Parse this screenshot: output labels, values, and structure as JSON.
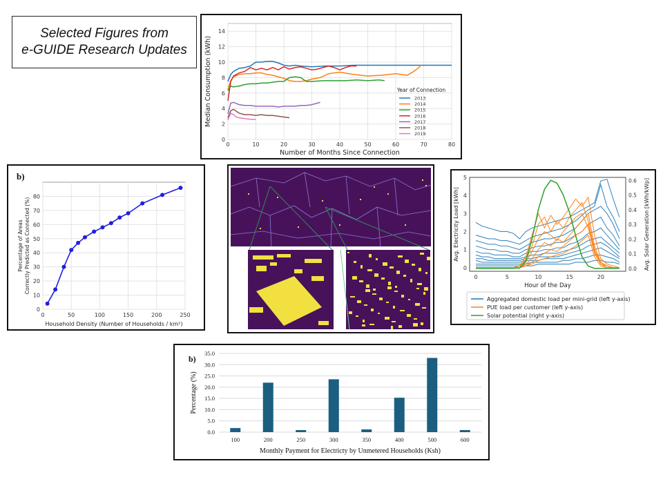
{
  "slide": {
    "title_line1": "Selected Figures from",
    "title_line2": "e-GUIDE Research Updates"
  },
  "chart_data": [
    {
      "type": "line",
      "id": "median-consumption",
      "xlabel": "Number of Months Since Connection",
      "ylabel": "Median Consumption (kWh)",
      "xlim": [
        0,
        80
      ],
      "ylim": [
        0,
        15
      ],
      "xticks": [
        0,
        10,
        20,
        30,
        40,
        50,
        60,
        70,
        80
      ],
      "yticks": [
        0,
        2,
        4,
        6,
        8,
        10,
        12,
        14
      ],
      "grid": true,
      "legend_title": "Year of Connection",
      "legend_position": "right",
      "series": [
        {
          "name": "2013",
          "color": "#1f77b4",
          "x": [
            0,
            1,
            2,
            4,
            6,
            8,
            10,
            12,
            14,
            16,
            18,
            20,
            22,
            24,
            26,
            30,
            35,
            40,
            45,
            50,
            55,
            60,
            65,
            70,
            75,
            80
          ],
          "y": [
            7.5,
            8.4,
            8.8,
            9.2,
            9.3,
            9.5,
            10.0,
            10.0,
            10.1,
            10.1,
            9.9,
            9.6,
            9.5,
            9.6,
            9.5,
            9.4,
            9.5,
            9.5,
            9.6,
            9.6,
            9.6,
            9.6,
            9.6,
            9.6,
            9.6,
            9.6
          ]
        },
        {
          "name": "2014",
          "color": "#ff7f0e",
          "x": [
            0,
            1,
            2,
            4,
            6,
            8,
            10,
            12,
            14,
            16,
            18,
            20,
            22,
            24,
            26,
            28,
            30,
            33,
            36,
            40,
            45,
            50,
            55,
            60,
            64,
            66,
            68,
            69
          ],
          "y": [
            6.5,
            7.6,
            8.1,
            8.4,
            8.5,
            8.5,
            8.6,
            8.6,
            8.4,
            8.3,
            8.1,
            7.9,
            7.6,
            7.5,
            7.5,
            7.6,
            7.8,
            8.0,
            8.5,
            8.7,
            8.4,
            8.2,
            8.3,
            8.5,
            8.3,
            8.7,
            9.2,
            9.6
          ]
        },
        {
          "name": "2015",
          "color": "#2ca02c",
          "x": [
            0,
            1,
            2,
            4,
            6,
            8,
            10,
            12,
            14,
            16,
            18,
            20,
            22,
            24,
            26,
            28,
            30,
            34,
            38,
            42,
            46,
            50,
            54,
            56
          ],
          "y": [
            6.3,
            6.9,
            6.8,
            6.9,
            7.1,
            7.2,
            7.2,
            7.3,
            7.3,
            7.4,
            7.5,
            7.5,
            8.0,
            8.1,
            8.0,
            7.5,
            7.5,
            7.6,
            7.6,
            7.6,
            7.7,
            7.6,
            7.7,
            7.6
          ]
        },
        {
          "name": "2016",
          "color": "#d62728",
          "x": [
            0,
            1,
            2,
            4,
            6,
            8,
            10,
            12,
            14,
            16,
            18,
            20,
            22,
            24,
            26,
            28,
            30,
            32,
            34,
            36,
            38,
            40,
            42,
            44,
            46
          ],
          "y": [
            5.0,
            7.5,
            8.2,
            8.6,
            8.8,
            9.3,
            9.0,
            9.2,
            9.0,
            9.3,
            9.0,
            9.4,
            9.1,
            9.3,
            9.4,
            9.2,
            9.0,
            9.1,
            9.3,
            9.5,
            9.3,
            9.0,
            9.3,
            9.5,
            9.5
          ]
        },
        {
          "name": "2017",
          "color": "#9467bd",
          "x": [
            0,
            1,
            2,
            4,
            6,
            8,
            10,
            12,
            14,
            16,
            18,
            20,
            22,
            24,
            26,
            28,
            30,
            32,
            33
          ],
          "y": [
            3.3,
            4.7,
            4.8,
            4.5,
            4.4,
            4.4,
            4.3,
            4.3,
            4.3,
            4.3,
            4.2,
            4.3,
            4.3,
            4.3,
            4.4,
            4.4,
            4.5,
            4.7,
            4.8
          ]
        },
        {
          "name": "2018",
          "color": "#8c564b",
          "x": [
            0,
            1,
            2,
            4,
            6,
            8,
            10,
            12,
            14,
            16,
            18,
            20,
            22
          ],
          "y": [
            2.8,
            3.7,
            3.9,
            3.4,
            3.2,
            3.2,
            3.1,
            3.2,
            3.1,
            3.1,
            3.0,
            2.9,
            2.8
          ]
        },
        {
          "name": "2019",
          "color": "#e377c2",
          "x": [
            0,
            1,
            2,
            3,
            4,
            6,
            8,
            10
          ],
          "y": [
            2.5,
            3.4,
            3.2,
            2.9,
            2.8,
            2.7,
            2.6,
            2.6
          ]
        }
      ]
    },
    {
      "type": "line",
      "id": "prediction-accuracy",
      "panel_label": "b)",
      "xlabel": "Household Density (Number of Households / km²)",
      "ylabel_line1": "Percentage of Areas",
      "ylabel_line2": "Correctly Predicted as Connected (%)",
      "xlim": [
        0,
        250
      ],
      "ylim": [
        0,
        90
      ],
      "xticks": [
        0,
        50,
        100,
        150,
        200,
        250
      ],
      "yticks": [
        0,
        10,
        20,
        30,
        40,
        50,
        60,
        70,
        80
      ],
      "grid": true,
      "color": "#1f1fe0",
      "x": [
        8,
        22,
        37,
        50,
        62,
        74,
        90,
        105,
        120,
        135,
        150,
        175,
        210,
        242
      ],
      "y": [
        4,
        14,
        30,
        42,
        47,
        51,
        55,
        58,
        61,
        65,
        68,
        75,
        81,
        86
      ]
    },
    {
      "type": "line",
      "id": "hourly-load",
      "xlabel": "Hour of the Day",
      "ylabel_left": "Avg. Electricity Load [kWh]",
      "ylabel_right": "Avg. Solar Generation [kWh/kWp]",
      "xlim": [
        -1,
        24
      ],
      "ylim_left": [
        -0.2,
        5
      ],
      "ylim_right": [
        -0.02,
        0.62
      ],
      "xticks": [
        0,
        5,
        10,
        15,
        20
      ],
      "yticks_left": [
        0,
        1,
        2,
        3,
        4,
        5
      ],
      "yticks_right": [
        0.0,
        0.1,
        0.2,
        0.3,
        0.4,
        0.5,
        0.6
      ],
      "legend_position": "below",
      "legend": [
        {
          "name": "Aggregated domestic load per mini-grid (left y-axis)",
          "color": "#1f77b4"
        },
        {
          "name": "PUE load per customer (left y-axis)",
          "color": "#ff7f0e"
        },
        {
          "name": "Solar potential (right y-axis)",
          "color": "#2ca02c"
        }
      ],
      "domestic_series": [
        [
          2.5,
          2.3,
          2.2,
          2.1,
          2.0,
          2.0,
          1.9,
          1.6,
          2.0,
          2.2,
          2.3,
          2.4,
          2.5,
          2.6,
          2.7,
          2.8,
          3.0,
          3.2,
          3.4,
          3.6,
          4.8,
          4.9,
          3.8,
          2.8
        ],
        [
          1.8,
          1.7,
          1.6,
          1.6,
          1.5,
          1.5,
          1.4,
          1.3,
          1.5,
          1.7,
          1.8,
          1.9,
          2.0,
          2.1,
          2.2,
          2.4,
          2.6,
          2.9,
          3.2,
          3.4,
          4.6,
          3.4,
          2.8,
          2.0
        ],
        [
          1.5,
          1.4,
          1.3,
          1.3,
          1.2,
          1.2,
          1.1,
          1.0,
          1.2,
          1.4,
          1.5,
          1.6,
          1.6,
          1.7,
          1.8,
          2.0,
          2.2,
          2.6,
          3.0,
          3.2,
          3.4,
          3.0,
          2.4,
          1.6
        ],
        [
          1.2,
          1.1,
          1.0,
          1.0,
          0.9,
          0.9,
          0.8,
          0.8,
          1.0,
          1.1,
          1.2,
          1.2,
          1.3,
          1.4,
          1.4,
          1.6,
          1.8,
          2.0,
          2.4,
          2.6,
          2.8,
          2.2,
          1.8,
          1.2
        ],
        [
          0.9,
          0.8,
          0.8,
          0.7,
          0.7,
          0.7,
          0.6,
          0.6,
          0.8,
          0.9,
          0.9,
          1.0,
          1.0,
          1.1,
          1.1,
          1.3,
          1.4,
          1.6,
          1.9,
          2.0,
          2.2,
          1.8,
          1.4,
          1.0
        ],
        [
          0.7,
          0.6,
          0.6,
          0.5,
          0.5,
          0.5,
          0.5,
          0.5,
          0.6,
          0.7,
          0.7,
          0.8,
          0.8,
          0.8,
          0.9,
          1.0,
          1.1,
          1.3,
          1.5,
          1.6,
          1.7,
          1.4,
          1.1,
          0.8
        ],
        [
          0.5,
          0.5,
          0.4,
          0.4,
          0.4,
          0.4,
          0.4,
          0.4,
          0.5,
          0.5,
          0.6,
          0.6,
          0.6,
          0.6,
          0.7,
          0.8,
          0.9,
          1.0,
          1.2,
          1.3,
          1.4,
          1.2,
          0.9,
          0.6
        ],
        [
          0.4,
          0.3,
          0.3,
          0.3,
          0.3,
          0.3,
          0.3,
          0.3,
          0.4,
          0.4,
          0.4,
          0.5,
          0.5,
          0.5,
          0.5,
          0.6,
          0.7,
          0.8,
          0.9,
          1.0,
          1.1,
          0.9,
          0.7,
          0.5
        ],
        [
          0.2,
          0.2,
          0.2,
          0.2,
          0.2,
          0.2,
          0.2,
          0.2,
          0.2,
          0.3,
          0.3,
          0.3,
          0.3,
          0.3,
          0.4,
          0.4,
          0.5,
          0.5,
          0.6,
          0.7,
          0.7,
          0.6,
          0.5,
          0.3
        ],
        [
          0.1,
          0.1,
          0.1,
          0.1,
          0.1,
          0.1,
          0.1,
          0.1,
          0.1,
          0.1,
          0.2,
          0.2,
          0.2,
          0.2,
          0.2,
          0.2,
          0.3,
          0.3,
          0.3,
          0.4,
          0.4,
          0.3,
          0.3,
          0.2
        ]
      ],
      "pue_series": [
        [
          0,
          0,
          0,
          0,
          0,
          0,
          0,
          0.1,
          0.6,
          1.8,
          3.0,
          2.2,
          2.9,
          2.4,
          2.8,
          3.3,
          3.8,
          3.4,
          3.9,
          1.8,
          0.5,
          0.2,
          0.1,
          0
        ],
        [
          0,
          0,
          0,
          0,
          0,
          0,
          0,
          0.1,
          0.4,
          1.2,
          2.4,
          2.8,
          2.0,
          2.6,
          2.2,
          2.8,
          3.2,
          3.6,
          2.6,
          1.0,
          0.3,
          0.1,
          0,
          0
        ],
        [
          0,
          0,
          0,
          0,
          0,
          0,
          0,
          0,
          0.3,
          0.9,
          1.6,
          2.0,
          1.8,
          1.5,
          2.0,
          2.4,
          2.8,
          3.0,
          2.2,
          0.8,
          0.2,
          0.1,
          0,
          0
        ],
        [
          0,
          0,
          0,
          0,
          0,
          0,
          0,
          0,
          0.2,
          0.5,
          1.0,
          1.4,
          1.2,
          1.6,
          1.4,
          1.8,
          2.2,
          2.6,
          3.0,
          1.2,
          0.3,
          0.1,
          0,
          0
        ],
        [
          0,
          0,
          0,
          0,
          0,
          0,
          0,
          0,
          0.1,
          0.3,
          0.6,
          0.8,
          1.0,
          0.9,
          1.2,
          1.5,
          1.8,
          2.0,
          2.4,
          0.9,
          0.2,
          0,
          0,
          0
        ],
        [
          0,
          0,
          0,
          0,
          0,
          0,
          0,
          0,
          0.1,
          0.2,
          0.4,
          0.5,
          0.6,
          0.7,
          0.8,
          1.0,
          1.2,
          1.5,
          1.8,
          0.6,
          0.1,
          0,
          0,
          0
        ]
      ],
      "solar": [
        0,
        0,
        0,
        0,
        0,
        0,
        0,
        0.002,
        0.05,
        0.2,
        0.4,
        0.54,
        0.6,
        0.58,
        0.5,
        0.38,
        0.22,
        0.08,
        0.015,
        0,
        0,
        0,
        0,
        0
      ]
    },
    {
      "type": "bar",
      "id": "monthly-payment",
      "panel_label": "b)",
      "xlabel": "Monthly Payment for Electricty by Unmetered Households (Ksh)",
      "ylabel": "Percentage (%)",
      "ylim": [
        0,
        35
      ],
      "yticks": [
        "0.0",
        "5.0",
        "10.0",
        "15.0",
        "20.0",
        "25.0",
        "30.0",
        "35.0"
      ],
      "grid": true,
      "color": "#1b5e80",
      "categories": [
        "100",
        "200",
        "250",
        "300",
        "350",
        "400",
        "500",
        "600"
      ],
      "values": [
        1.8,
        22.0,
        0.9,
        23.5,
        1.2,
        15.3,
        33.0,
        0.9
      ]
    }
  ],
  "map": {
    "colors": {
      "background": "#48125a",
      "yellow": "#f2e040",
      "border": "#8a7ad6"
    }
  }
}
